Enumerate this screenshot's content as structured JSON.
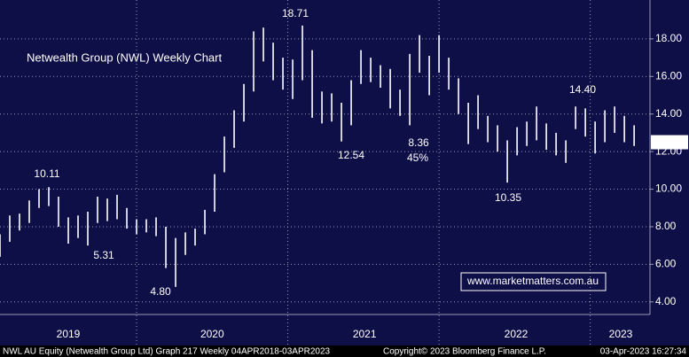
{
  "chart_data": {
    "type": "range-bar",
    "title": "Netwealth Group (NWL) Weekly Chart",
    "title_color": "#39e07a",
    "color": "#ffffff",
    "x": [
      0,
      4,
      8,
      12,
      16,
      20,
      24,
      28,
      32,
      36,
      40,
      44,
      48,
      52,
      56,
      60,
      64,
      68,
      72,
      76,
      80,
      84,
      88,
      92,
      96,
      100,
      104,
      108,
      112,
      116,
      120,
      124,
      128,
      132,
      136,
      140,
      144,
      148,
      152,
      156,
      160,
      164,
      168,
      172,
      176,
      180,
      184,
      188,
      192,
      196,
      200,
      204,
      208,
      212,
      216,
      220,
      224,
      228,
      232,
      236,
      240,
      244,
      248,
      252,
      256,
      260
    ],
    "lows": [
      6.4,
      7.2,
      7.8,
      8.2,
      9.0,
      9.1,
      8.0,
      7.1,
      7.4,
      7.0,
      8.2,
      8.3,
      8.4,
      7.9,
      7.6,
      7.7,
      7.5,
      5.8,
      4.8,
      6.5,
      7.0,
      7.6,
      8.8,
      10.9,
      12.2,
      13.6,
      15.2,
      16.8,
      15.8,
      15.3,
      14.8,
      15.8,
      13.8,
      13.5,
      13.6,
      12.54,
      13.4,
      15.6,
      15.7,
      15.4,
      14.3,
      13.9,
      13.4,
      16.2,
      15.0,
      16.2,
      15.3,
      14.0,
      12.4,
      13.2,
      12.5,
      12.0,
      10.35,
      11.8,
      12.3,
      12.6,
      12.1,
      11.8,
      11.4,
      13.2,
      12.8,
      11.9,
      12.5,
      13.0,
      12.5,
      12.3
    ],
    "highs": [
      7.6,
      8.6,
      8.7,
      9.4,
      10.0,
      10.11,
      9.6,
      8.5,
      8.6,
      8.8,
      9.6,
      9.5,
      9.7,
      9.0,
      8.4,
      8.4,
      8.5,
      8.0,
      7.4,
      7.7,
      7.9,
      8.9,
      10.8,
      12.8,
      14.2,
      15.6,
      18.4,
      18.6,
      17.8,
      17.0,
      16.9,
      18.71,
      17.4,
      15.2,
      15.1,
      14.6,
      15.8,
      17.4,
      17.0,
      16.6,
      16.4,
      15.3,
      17.2,
      18.2,
      17.1,
      18.2,
      17.0,
      15.9,
      14.6,
      15.0,
      13.9,
      13.4,
      12.6,
      13.3,
      13.6,
      14.4,
      13.5,
      13.0,
      12.6,
      14.4,
      14.3,
      13.6,
      14.2,
      14.4,
      13.9,
      13.4
    ],
    "xlim": [
      0,
      266.5
    ],
    "xgrid": [
      56,
      118,
      180,
      242
    ],
    "xticks": [
      {
        "value": 28,
        "label": "2019"
      },
      {
        "value": 87,
        "label": "2020"
      },
      {
        "value": 149.5,
        "label": "2021"
      },
      {
        "value": 211.6,
        "label": "2022"
      },
      {
        "value": 254.5,
        "label": "2023"
      }
    ],
    "ylim": [
      3.33,
      20.07
    ],
    "yticks": [
      {
        "value": 4,
        "label": "4.00"
      },
      {
        "value": 6,
        "label": "6.00"
      },
      {
        "value": 8,
        "label": "8.00"
      },
      {
        "value": 10,
        "label": "10.00"
      },
      {
        "value": 12,
        "label": "12.00"
      },
      {
        "value": 14,
        "label": "14.00"
      },
      {
        "value": 16,
        "label": "16.00"
      },
      {
        "value": 18,
        "label": "18.00"
      }
    ],
    "grid": true,
    "last_price": {
      "value": 12.5,
      "label": "12.50"
    },
    "annotations": [
      {
        "text": "18.71",
        "color": "#ffffff"
      },
      {
        "text": "12.54",
        "color": "#ffffff"
      },
      {
        "text": "10.35",
        "color": "#ffffff"
      },
      {
        "text": "14.40",
        "color": "#ffffff"
      },
      {
        "text": "10.11",
        "color": "#ffffff"
      },
      {
        "text": "4.80",
        "color": "#ffffff"
      },
      {
        "text": "5.31",
        "color": "#f2e600"
      },
      {
        "text": "8.36",
        "color": "#f2e600"
      },
      {
        "text": "45%",
        "color": "#f2e600"
      }
    ],
    "watermark": "www.marketmatters.com.au",
    "footer": [
      "NWL AU Equity (Netwealth Group Ltd) Graph 217  Weekly 04APR2018-03APR2023",
      "Copyright© 2023 Bloomberg Finance L.P.",
      "03-Apr-2023 16:27:34"
    ]
  }
}
